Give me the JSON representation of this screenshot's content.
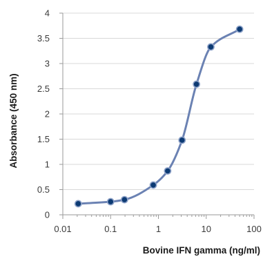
{
  "chart_data": {
    "type": "line",
    "title": "",
    "xlabel": "Bovine IFN gamma (ng/ml)",
    "ylabel": "Absorbance (450 nm)",
    "x_scale": "log",
    "xlim": [
      0.01,
      100
    ],
    "ylim": [
      0,
      4
    ],
    "x_ticks": [
      0.01,
      0.1,
      1,
      10,
      100
    ],
    "x_tick_labels": [
      "0.01",
      "0.1",
      "1",
      "10",
      "100"
    ],
    "y_ticks": [
      0,
      0.5,
      1,
      1.5,
      2,
      2.5,
      3,
      3.5,
      4
    ],
    "y_tick_labels": [
      "0",
      "0.5",
      "1",
      "1.5",
      "2",
      "2.5",
      "3",
      "3.5",
      "4"
    ],
    "grid": "horizontal",
    "legend": "none",
    "colors": {
      "line": "#6b82b3",
      "marker": "#0c3a73",
      "grid": "#d9d9d9",
      "axis": "#9a9a9a"
    },
    "series": [
      {
        "x": [
          0.021,
          0.1,
          0.195,
          0.78,
          1.56,
          3.12,
          6.25,
          12.5,
          50
        ],
        "y": [
          0.22,
          0.26,
          0.3,
          0.59,
          0.87,
          1.48,
          2.59,
          3.33,
          3.68
        ]
      }
    ]
  }
}
